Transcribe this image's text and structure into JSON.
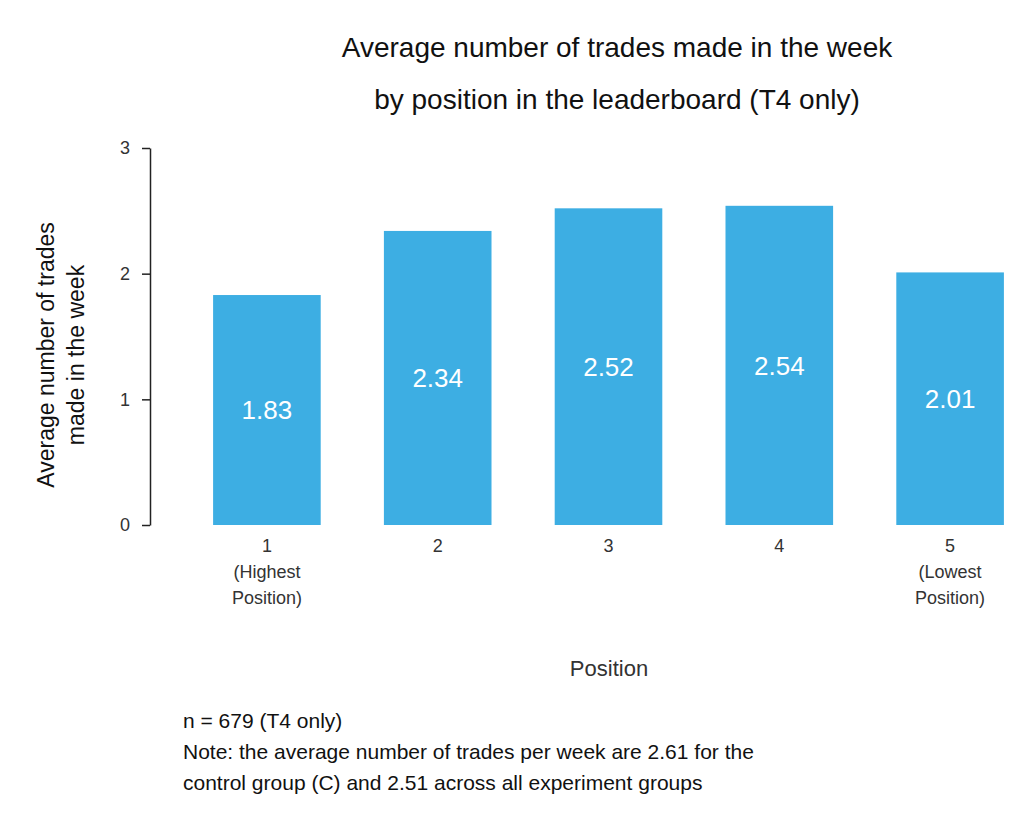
{
  "chart_data": {
    "type": "bar",
    "title": "Average number of trades made in the week\nby position in the leaderboard (T4 only)",
    "x_label": "Position",
    "y_label": "Average number of trades\nmade in the week",
    "categories": [
      "1 (Highest Position)",
      "2",
      "3",
      "4",
      "5 (Lowest Position)"
    ],
    "values": [
      1.83,
      2.34,
      2.52,
      2.54,
      2.01
    ],
    "color": "#3daee3",
    "ylim": [
      0,
      3
    ],
    "yticks": [
      0,
      1,
      2,
      3
    ],
    "grid": false,
    "data_labels": true,
    "annotations": [
      "n = 679 (T4 only)",
      "Note: the average number of trades per week are 2.61 for the",
      "control group (C) and 2.51 across all experiment groups"
    ]
  }
}
